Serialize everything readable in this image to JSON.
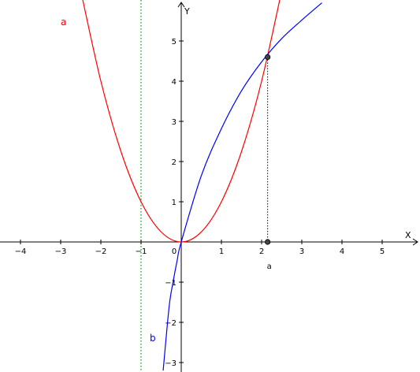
{
  "chart_data": {
    "type": "line",
    "title": "",
    "xlabel": "X",
    "ylabel": "Y",
    "xlim": [
      -4.5,
      5.95
    ],
    "ylim": [
      -3.2,
      5.95
    ],
    "grid": false,
    "x_ticks": [
      -4,
      -3,
      -2,
      -1,
      0,
      1,
      2,
      3,
      4,
      5
    ],
    "y_ticks": [
      -3,
      -2,
      -1,
      1,
      2,
      3,
      4,
      5
    ],
    "origin_label": "0",
    "series": [
      {
        "name": "a",
        "color": "#ff0000",
        "x": [
          -2.5,
          -2.0,
          -1.5,
          -1.0,
          -0.5,
          0.0,
          0.5,
          1.0,
          1.5,
          2.0,
          2.5
        ],
        "y": [
          6.25,
          4.0,
          2.25,
          1.0,
          0.25,
          0.0,
          0.25,
          1.0,
          2.25,
          4.0,
          6.25
        ]
      },
      {
        "name": "b",
        "color": "#0000ff",
        "x": [
          -0.45,
          -0.3,
          -0.2,
          -0.1,
          0.0,
          0.5,
          1.0,
          1.5,
          2.0,
          2.5,
          3.0,
          3.5
        ],
        "y": [
          -3.2,
          -1.6,
          -0.98,
          -0.45,
          0.0,
          1.65,
          2.82,
          3.76,
          4.48,
          5.06,
          5.52,
          5.95
        ]
      }
    ],
    "vertical_line": {
      "x": -1,
      "color": "#009900",
      "style": "dotted"
    },
    "intersection_point": {
      "x": 2.15,
      "y": 4.6
    },
    "axis_point": {
      "x": 2.15,
      "y": 0,
      "label": "a"
    }
  }
}
